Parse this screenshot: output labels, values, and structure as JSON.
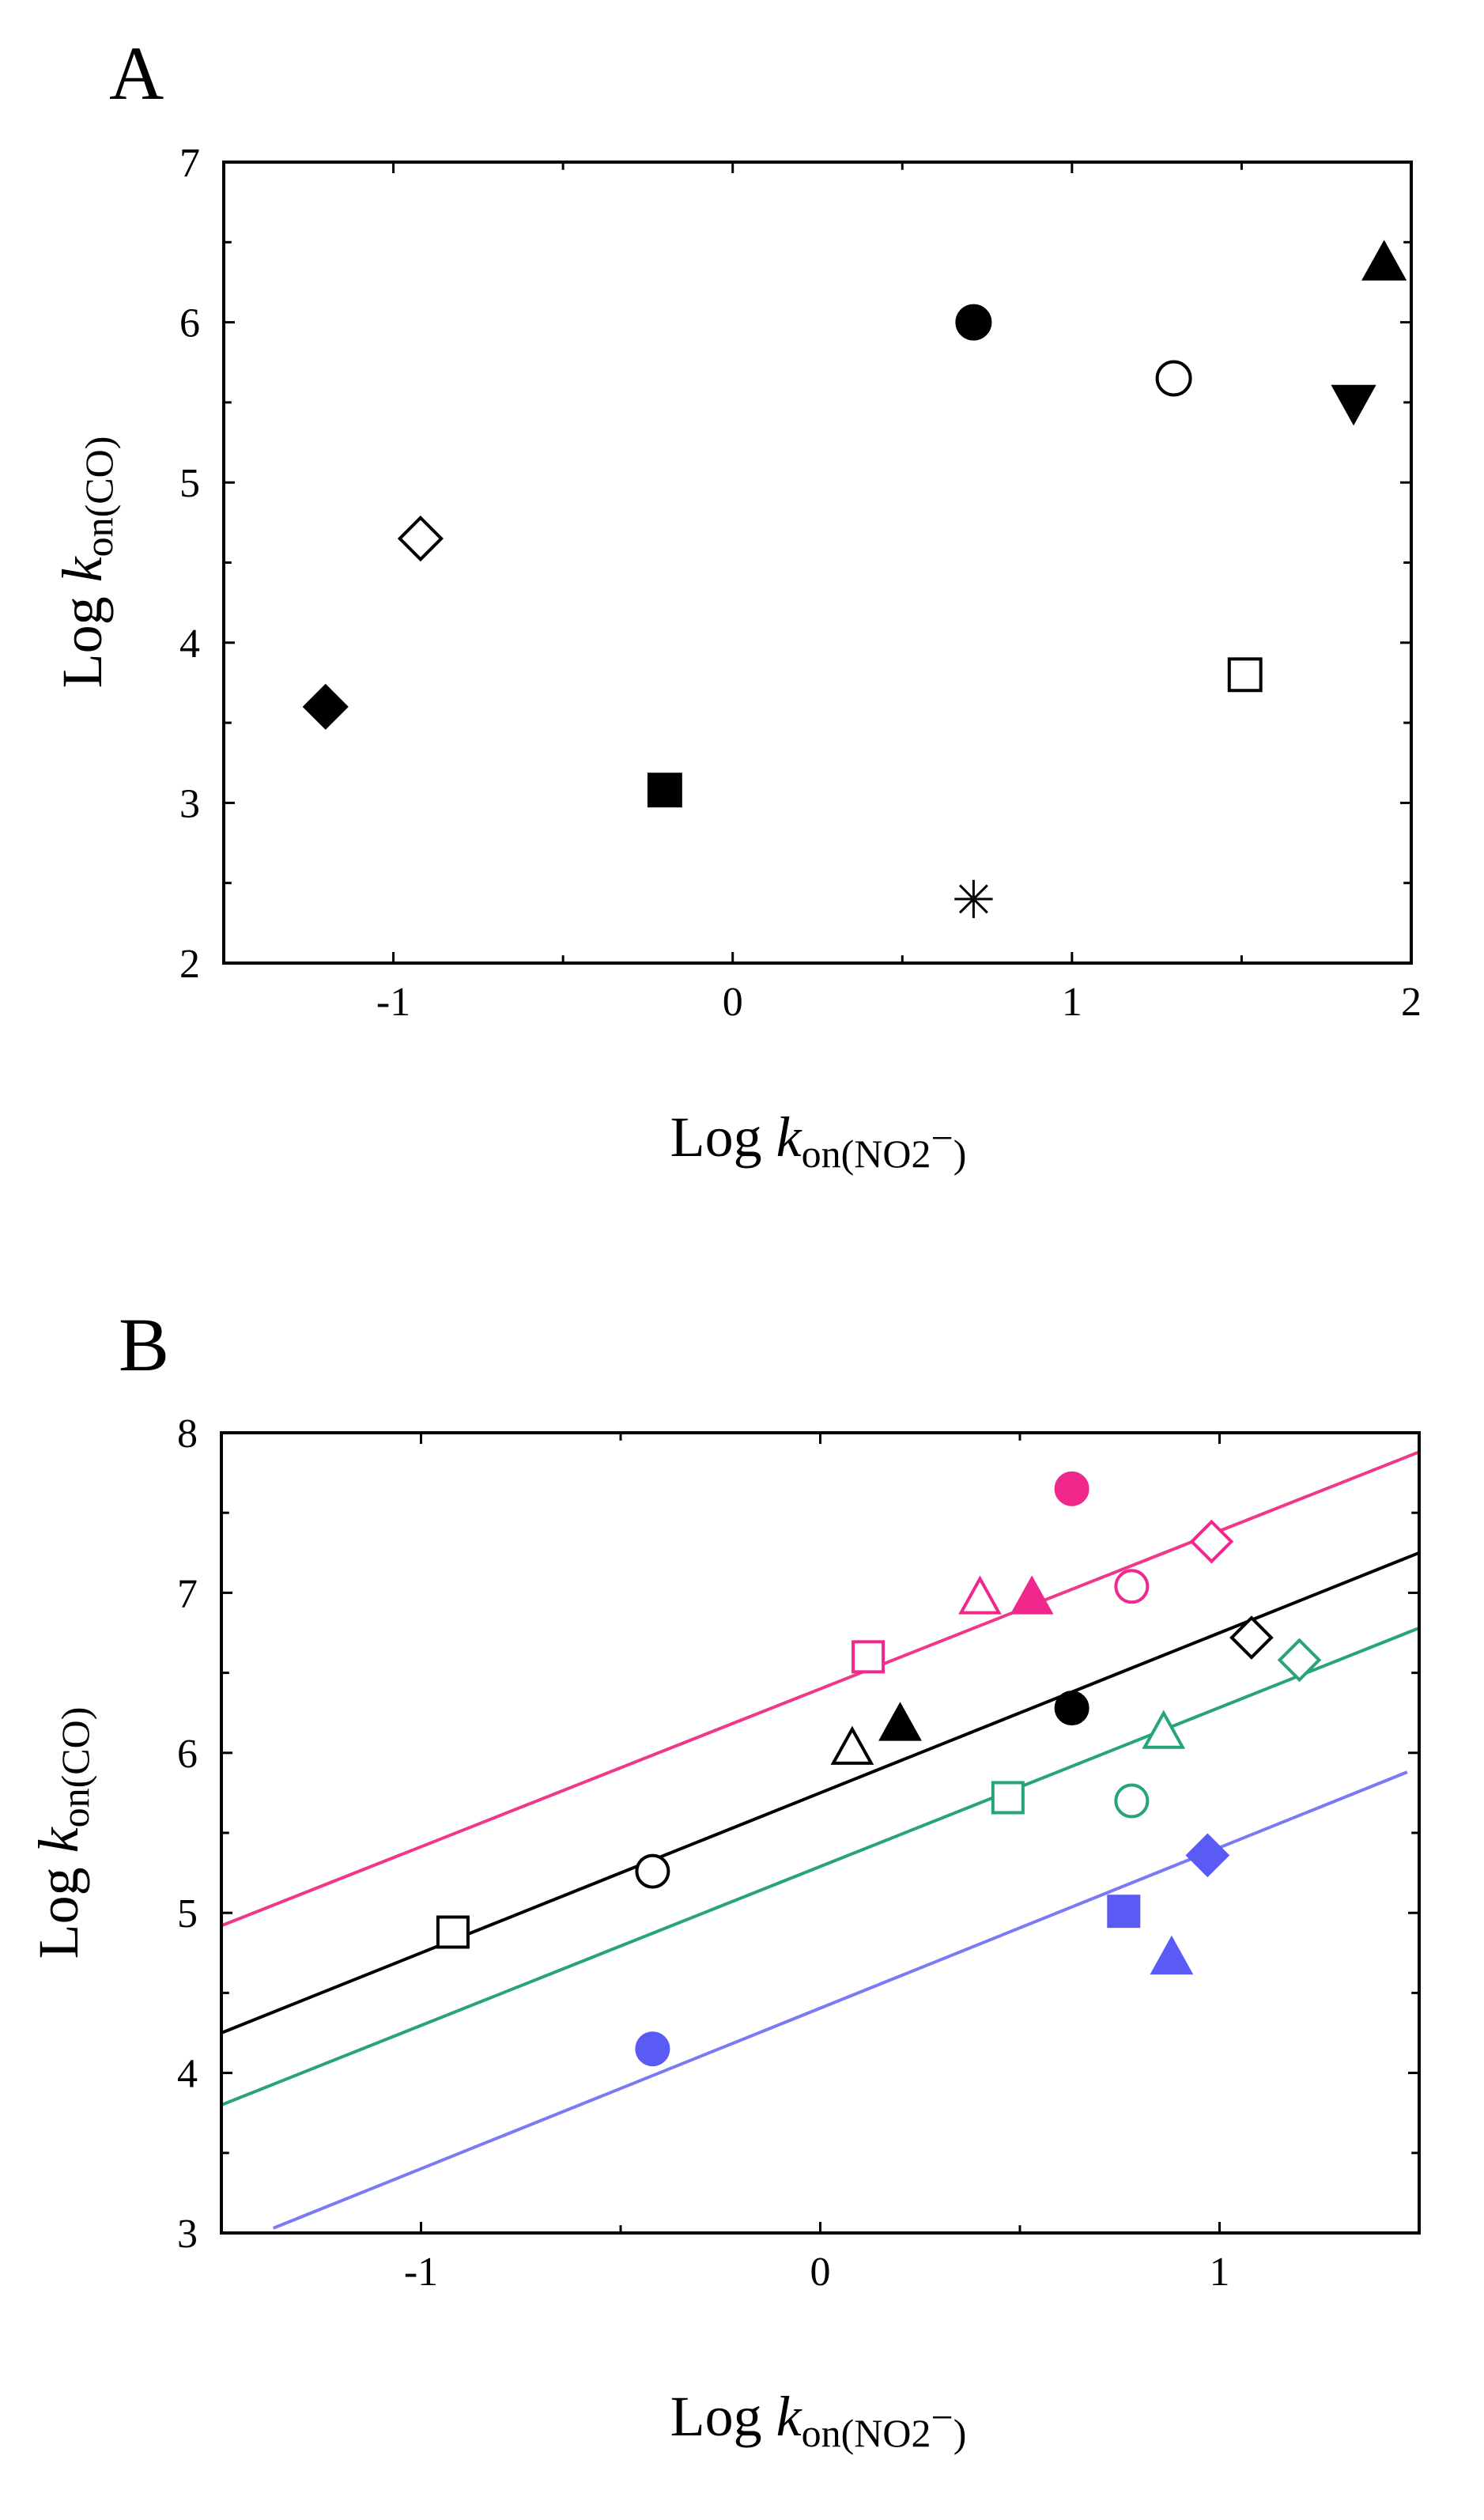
{
  "chart_data": [
    {
      "panel": "A",
      "type": "scatter",
      "xlabel": {
        "prefix": "Log ",
        "var": "k",
        "sub": "on(NO",
        "sub_num": "2",
        "sub_sup": "−",
        "sub_end": ")"
      },
      "ylabel": {
        "prefix": "Log ",
        "var": "k",
        "sub": "on(CO)"
      },
      "xlim": [
        -1.5,
        2.0
      ],
      "ylim": [
        2,
        7
      ],
      "xticks": [
        -1,
        0,
        1,
        2
      ],
      "xtick_labels": [
        "-1",
        "0",
        "1",
        "2"
      ],
      "yticks": [
        2,
        3,
        4,
        5,
        6,
        7
      ],
      "ytick_labels": [
        "2",
        "3",
        "4",
        "5",
        "6",
        "7"
      ],
      "points": [
        {
          "x": -1.2,
          "y": 3.6,
          "marker": "diamond",
          "filled": true,
          "color": "#000000"
        },
        {
          "x": -0.92,
          "y": 4.65,
          "marker": "diamond",
          "filled": false,
          "color": "#000000"
        },
        {
          "x": -0.2,
          "y": 3.08,
          "marker": "square",
          "filled": true,
          "color": "#000000"
        },
        {
          "x": 0.71,
          "y": 6.0,
          "marker": "circle",
          "filled": true,
          "color": "#000000"
        },
        {
          "x": 0.71,
          "y": 2.4,
          "marker": "asterisk",
          "filled": false,
          "color": "#000000"
        },
        {
          "x": 1.3,
          "y": 5.65,
          "marker": "circle",
          "filled": false,
          "color": "#000000"
        },
        {
          "x": 1.51,
          "y": 3.8,
          "marker": "square",
          "filled": false,
          "color": "#000000"
        },
        {
          "x": 1.83,
          "y": 5.5,
          "marker": "triangle-down",
          "filled": true,
          "color": "#000000"
        },
        {
          "x": 1.92,
          "y": 6.37,
          "marker": "triangle-up",
          "filled": true,
          "color": "#000000"
        }
      ]
    },
    {
      "panel": "B",
      "type": "scatter",
      "xlabel": {
        "prefix": "Log ",
        "var": "k",
        "sub": "on(NO",
        "sub_num": "2",
        "sub_sup": "−",
        "sub_end": ")"
      },
      "ylabel": {
        "prefix": "Log ",
        "var": "k",
        "sub": "on(CO)"
      },
      "xlim": [
        -1.5,
        1.5
      ],
      "ylim": [
        3,
        8
      ],
      "xticks": [
        -1,
        0,
        1
      ],
      "xtick_labels": [
        "-1",
        "0",
        "1"
      ],
      "yticks": [
        3,
        4,
        5,
        6,
        7,
        8
      ],
      "ytick_labels": [
        "3",
        "4",
        "5",
        "6",
        "7",
        "8"
      ],
      "lines": [
        {
          "color": "#f0378a",
          "x": [
            -1.5,
            1.5
          ],
          "y": [
            4.92,
            7.88
          ]
        },
        {
          "color": "#000000",
          "x": [
            -1.5,
            1.5
          ],
          "y": [
            4.25,
            7.25
          ]
        },
        {
          "color": "#27a37e",
          "x": [
            -1.5,
            1.5
          ],
          "y": [
            3.8,
            6.78
          ]
        },
        {
          "color": "#7a7af5",
          "x": [
            -1.37,
            1.47
          ],
          "y": [
            3.03,
            5.88
          ]
        }
      ],
      "points": [
        {
          "x": 0.63,
          "y": 7.65,
          "marker": "circle",
          "filled": true,
          "color": "#f0288c"
        },
        {
          "x": 0.4,
          "y": 6.97,
          "marker": "triangle-up",
          "filled": false,
          "color": "#f0288c"
        },
        {
          "x": 0.53,
          "y": 6.97,
          "marker": "triangle-up",
          "filled": true,
          "color": "#f0288c"
        },
        {
          "x": 0.78,
          "y": 7.04,
          "marker": "circle",
          "filled": false,
          "color": "#f0288c"
        },
        {
          "x": 0.98,
          "y": 7.32,
          "marker": "diamond",
          "filled": false,
          "color": "#f0288c"
        },
        {
          "x": 0.12,
          "y": 6.6,
          "marker": "square",
          "filled": false,
          "color": "#f0288c"
        },
        {
          "x": -0.92,
          "y": 4.88,
          "marker": "square",
          "filled": false,
          "color": "#000000"
        },
        {
          "x": -0.42,
          "y": 5.26,
          "marker": "circle",
          "filled": false,
          "color": "#000000"
        },
        {
          "x": 0.08,
          "y": 6.03,
          "marker": "triangle-up",
          "filled": false,
          "color": "#000000"
        },
        {
          "x": 0.2,
          "y": 6.18,
          "marker": "triangle-up",
          "filled": true,
          "color": "#000000"
        },
        {
          "x": 0.63,
          "y": 6.28,
          "marker": "circle",
          "filled": true,
          "color": "#000000"
        },
        {
          "x": 1.08,
          "y": 6.72,
          "marker": "diamond",
          "filled": false,
          "color": "#000000"
        },
        {
          "x": 0.47,
          "y": 5.72,
          "marker": "square",
          "filled": false,
          "color": "#27a37e"
        },
        {
          "x": 0.78,
          "y": 5.7,
          "marker": "circle",
          "filled": false,
          "color": "#27a37e"
        },
        {
          "x": 0.86,
          "y": 6.13,
          "marker": "triangle-up",
          "filled": false,
          "color": "#27a37e"
        },
        {
          "x": 1.2,
          "y": 6.58,
          "marker": "diamond",
          "filled": false,
          "color": "#27a37e"
        },
        {
          "x": -0.42,
          "y": 4.15,
          "marker": "circle",
          "filled": true,
          "color": "#5a5af5"
        },
        {
          "x": 0.76,
          "y": 5.01,
          "marker": "square",
          "filled": true,
          "color": "#5a5af5"
        },
        {
          "x": 0.88,
          "y": 4.72,
          "marker": "triangle-up",
          "filled": true,
          "color": "#5a5af5"
        },
        {
          "x": 0.97,
          "y": 5.36,
          "marker": "diamond",
          "filled": true,
          "color": "#5a5af5"
        }
      ]
    }
  ]
}
